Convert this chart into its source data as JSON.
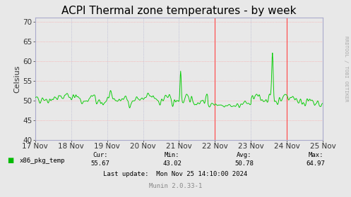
{
  "title": "ACPI Thermal zone temperatures - by week",
  "ylabel": "Celsius",
  "xlabel_dates": [
    "17 Nov",
    "18 Nov",
    "19 Nov",
    "20 Nov",
    "21 Nov",
    "22 Nov",
    "23 Nov",
    "24 Nov",
    "25 Nov"
  ],
  "ylim": [
    40,
    71
  ],
  "yticks": [
    40,
    45,
    50,
    55,
    60,
    65,
    70
  ],
  "bg_color": "#e8e8e8",
  "plot_bg_color": "#e8e8e8",
  "line_color": "#00cc00",
  "hgrid_color": "#ff9999",
  "vgrid_color": "#aaaacc",
  "title_fontsize": 11,
  "axis_fontsize": 8,
  "tick_fontsize": 7.5,
  "legend_label": "x86_pkg_temp",
  "legend_color": "#00bb00",
  "cur_val": "55.67",
  "min_val": "43.02",
  "avg_val": "50.78",
  "max_val": "64.97",
  "last_update": "Mon Nov 25 14:10:00 2024",
  "munin_version": "Munin 2.0.33-1",
  "rrdtool_label": "RRDTOOL / TOBI OETIKER",
  "n_points": 800,
  "random_seed": 42
}
